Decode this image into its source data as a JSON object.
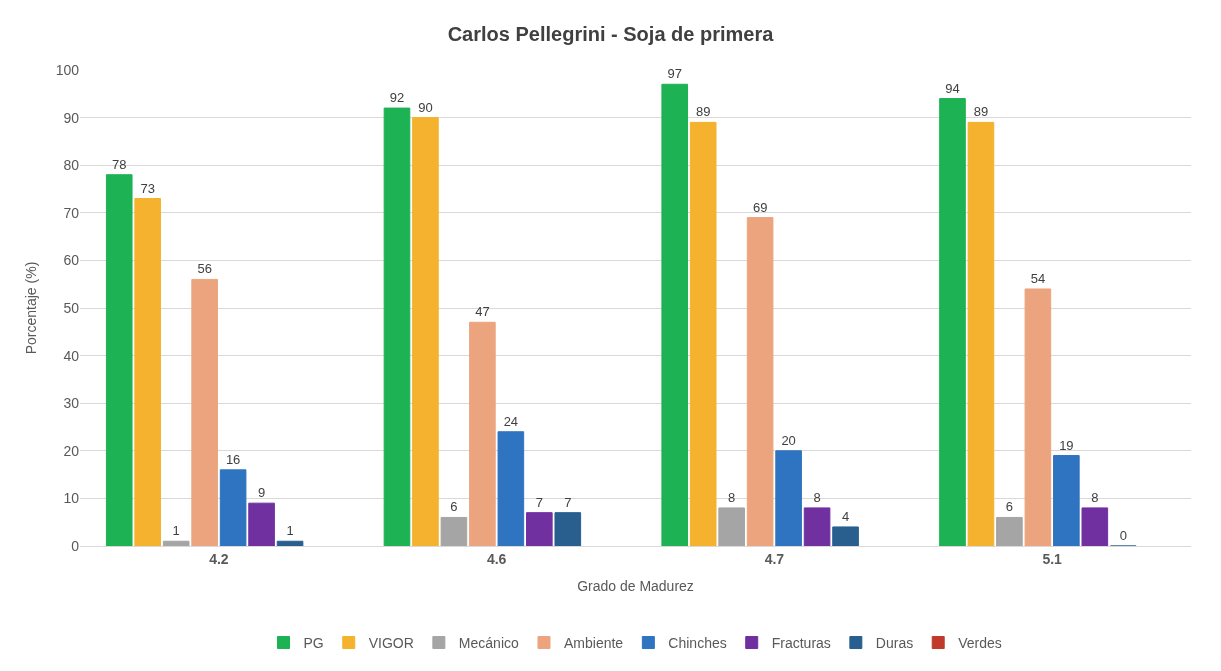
{
  "chart_data": {
    "type": "bar",
    "title": "Carlos Pellegrini - Soja de primera",
    "xlabel": "Grado de Madurez",
    "ylabel": "Porcentaje (%)",
    "categories": [
      "4.2",
      "4.6",
      "4.7",
      "5.1"
    ],
    "series": [
      {
        "name": "PG",
        "color": "#1db254",
        "values": [
          78,
          92,
          97,
          94
        ]
      },
      {
        "name": "VIGOR",
        "color": "#f4b22e",
        "values": [
          73,
          90,
          89,
          89
        ]
      },
      {
        "name": "Mecánico",
        "color": "#a5a5a5",
        "values": [
          1,
          6,
          8,
          6
        ]
      },
      {
        "name": "Ambiente",
        "color": "#eca47e",
        "values": [
          56,
          47,
          69,
          54
        ]
      },
      {
        "name": "Chinches",
        "color": "#2f74c0",
        "values": [
          16,
          24,
          20,
          19
        ]
      },
      {
        "name": "Fracturas",
        "color": "#7030a0",
        "values": [
          9,
          7,
          8,
          8
        ]
      },
      {
        "name": "Duras",
        "color": "#285f8f",
        "values": [
          1,
          7,
          4,
          0
        ]
      },
      {
        "name": "Verdes",
        "color": "#c0392b",
        "values": [
          null,
          null,
          null,
          null
        ]
      }
    ],
    "ylim": [
      0,
      100
    ],
    "yticks": [
      0,
      10,
      20,
      30,
      40,
      50,
      60,
      70,
      80,
      90,
      100
    ],
    "grid": "y",
    "legend": "bottom",
    "data_labels": true
  }
}
